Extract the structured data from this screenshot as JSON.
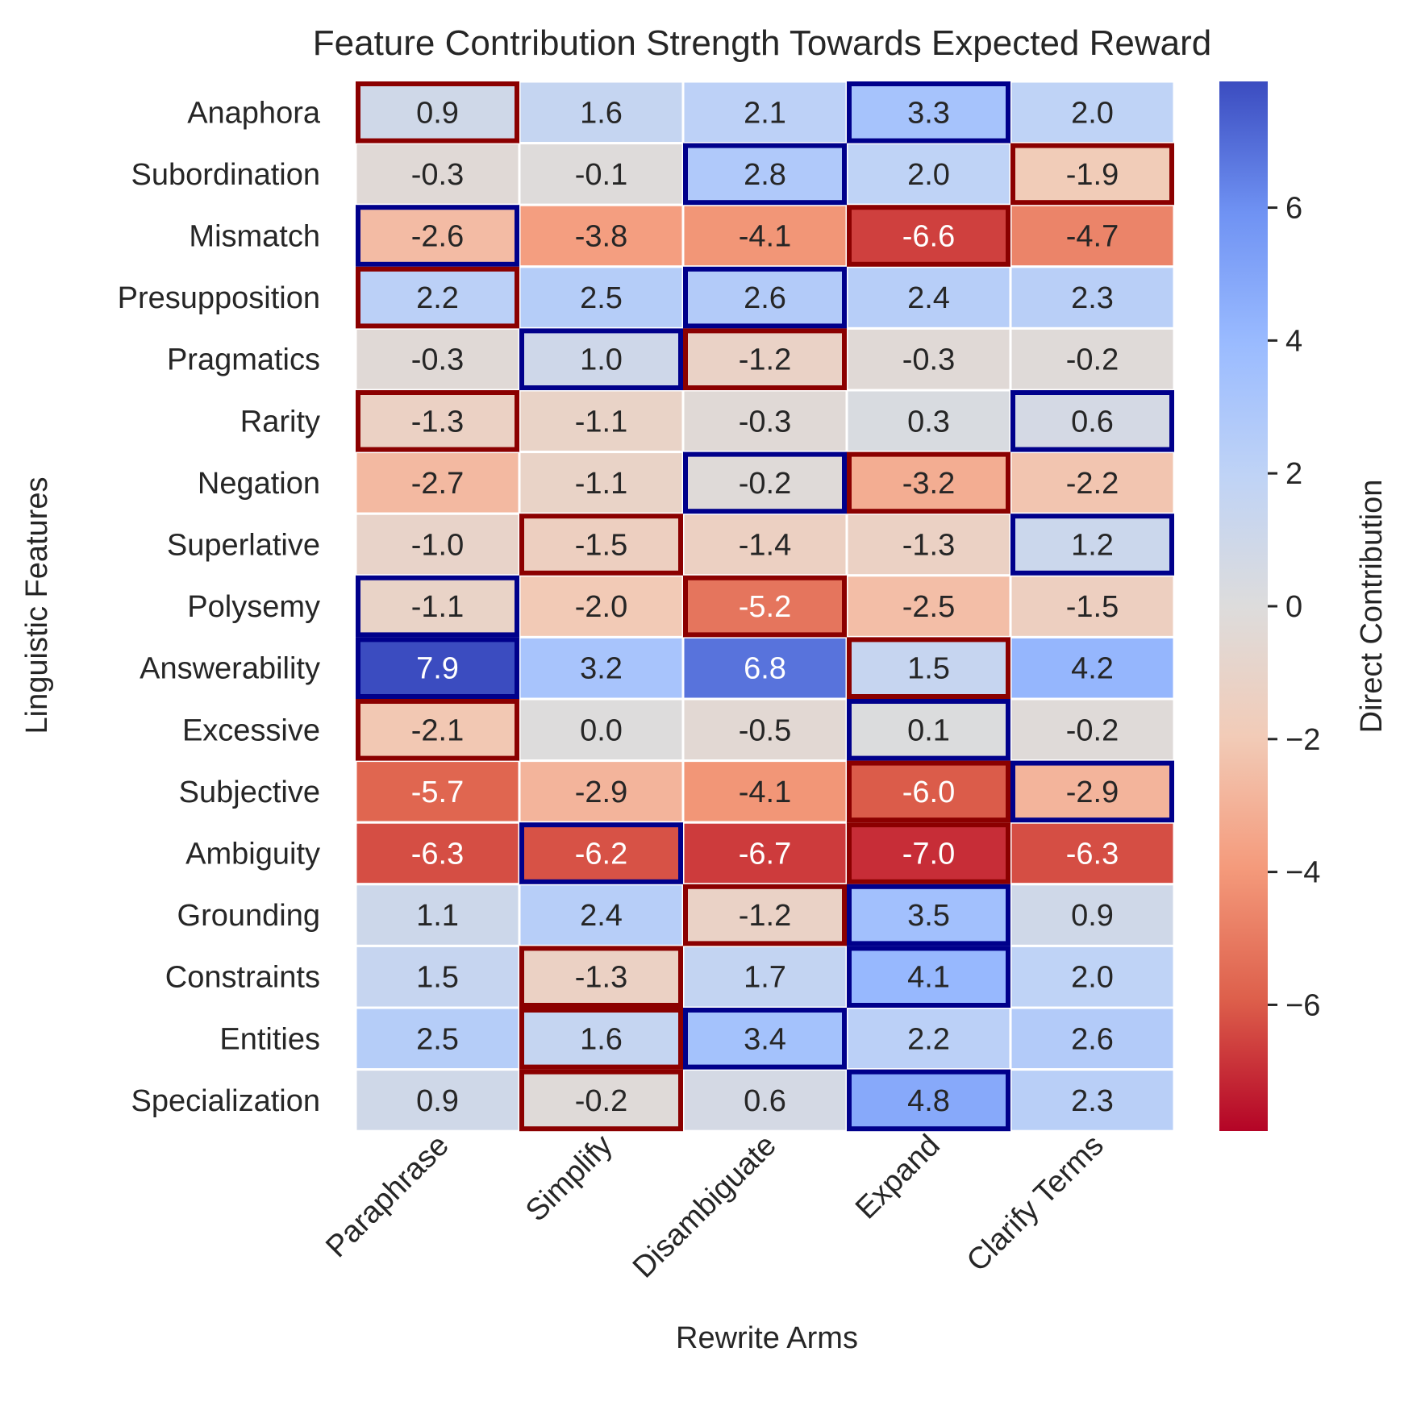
{
  "chart_data": {
    "type": "heatmap",
    "title": "Feature Contribution Strength Towards Expected Reward",
    "xlabel": "Rewrite Arms",
    "ylabel": "Linguistic Features",
    "colorbar_label": "Direct Contribution",
    "colormap": "coolwarm_r",
    "vmin": -7.9,
    "vmax": 7.9,
    "colorbar_ticks": [
      6,
      4,
      2,
      0,
      -2,
      -4,
      -6
    ],
    "colorbar_tick_labels": [
      "6",
      "4",
      "2",
      "0",
      "−2",
      "−4",
      "−6"
    ],
    "columns": [
      "Paraphrase",
      "Simplify",
      "Disambiguate",
      "Expand",
      "Clarify Terms"
    ],
    "rows": [
      "Anaphora",
      "Subordination",
      "Mismatch",
      "Presupposition",
      "Pragmatics",
      "Rarity",
      "Negation",
      "Superlative",
      "Polysemy",
      "Answerability",
      "Excessive",
      "Subjective",
      "Ambiguity",
      "Grounding",
      "Constraints",
      "Entities",
      "Specialization"
    ],
    "values": [
      [
        0.9,
        1.6,
        2.1,
        3.3,
        2.0
      ],
      [
        -0.3,
        -0.1,
        2.8,
        2.0,
        -1.9
      ],
      [
        -2.6,
        -3.8,
        -4.1,
        -6.6,
        -4.7
      ],
      [
        2.2,
        2.5,
        2.6,
        2.4,
        2.3
      ],
      [
        -0.3,
        1.0,
        -1.2,
        -0.3,
        -0.2
      ],
      [
        -1.3,
        -1.1,
        -0.3,
        0.3,
        0.6
      ],
      [
        -2.7,
        -1.1,
        -0.2,
        -3.2,
        -2.2
      ],
      [
        -1.0,
        -1.5,
        -1.4,
        -1.3,
        1.2
      ],
      [
        -1.1,
        -2.0,
        -5.2,
        -2.5,
        -1.5
      ],
      [
        7.9,
        3.2,
        6.8,
        1.5,
        4.2
      ],
      [
        -2.1,
        0.0,
        -0.5,
        0.1,
        -0.2
      ],
      [
        -5.7,
        -2.9,
        -4.1,
        -6.0,
        -2.9
      ],
      [
        -6.3,
        -6.2,
        -6.7,
        -7.0,
        -6.3
      ],
      [
        1.1,
        2.4,
        -1.2,
        3.5,
        0.9
      ],
      [
        1.5,
        -1.3,
        1.7,
        4.1,
        2.0
      ],
      [
        2.5,
        1.6,
        3.4,
        2.2,
        2.6
      ],
      [
        0.9,
        -0.2,
        0.6,
        4.8,
        2.3
      ]
    ],
    "value_labels": [
      [
        "0.9",
        "1.6",
        "2.1",
        "3.3",
        "2.0"
      ],
      [
        "-0.3",
        "-0.1",
        "2.8",
        "2.0",
        "-1.9"
      ],
      [
        "-2.6",
        "-3.8",
        "-4.1",
        "-6.6",
        "-4.7"
      ],
      [
        "2.2",
        "2.5",
        "2.6",
        "2.4",
        "2.3"
      ],
      [
        "-0.3",
        "1.0",
        "-1.2",
        "-0.3",
        "-0.2"
      ],
      [
        "-1.3",
        "-1.1",
        "-0.3",
        "0.3",
        "0.6"
      ],
      [
        "-2.7",
        "-1.1",
        "-0.2",
        "-3.2",
        "-2.2"
      ],
      [
        "-1.0",
        "-1.5",
        "-1.4",
        "-1.3",
        "1.2"
      ],
      [
        "-1.1",
        "-2.0",
        "-5.2",
        "-2.5",
        "-1.5"
      ],
      [
        "7.9",
        "3.2",
        "6.8",
        "1.5",
        "4.2"
      ],
      [
        "-2.1",
        "0.0",
        "-0.5",
        "0.1",
        "-0.2"
      ],
      [
        "-5.7",
        "-2.9",
        "-4.1",
        "-6.0",
        "-2.9"
      ],
      [
        "-6.3",
        "-6.2",
        "-6.7",
        "-7.0",
        "-6.3"
      ],
      [
        "1.1",
        "2.4",
        "-1.2",
        "3.5",
        "0.9"
      ],
      [
        "1.5",
        "-1.3",
        "1.7",
        "4.1",
        "2.0"
      ],
      [
        "2.5",
        "1.6",
        "3.4",
        "2.2",
        "2.6"
      ],
      [
        "0.9",
        "-0.2",
        "0.6",
        "4.8",
        "2.3"
      ]
    ],
    "highlight_colors": {
      "max": "#00008b",
      "min": "#8b0000"
    },
    "highlights": [
      {
        "row": 0,
        "col": 0,
        "kind": "min"
      },
      {
        "row": 0,
        "col": 3,
        "kind": "max"
      },
      {
        "row": 1,
        "col": 2,
        "kind": "max"
      },
      {
        "row": 1,
        "col": 4,
        "kind": "min"
      },
      {
        "row": 2,
        "col": 0,
        "kind": "max"
      },
      {
        "row": 2,
        "col": 3,
        "kind": "min"
      },
      {
        "row": 3,
        "col": 0,
        "kind": "min"
      },
      {
        "row": 3,
        "col": 2,
        "kind": "max"
      },
      {
        "row": 4,
        "col": 1,
        "kind": "max"
      },
      {
        "row": 4,
        "col": 2,
        "kind": "min"
      },
      {
        "row": 5,
        "col": 0,
        "kind": "min"
      },
      {
        "row": 5,
        "col": 4,
        "kind": "max"
      },
      {
        "row": 6,
        "col": 2,
        "kind": "max"
      },
      {
        "row": 6,
        "col": 3,
        "kind": "min"
      },
      {
        "row": 7,
        "col": 1,
        "kind": "min"
      },
      {
        "row": 7,
        "col": 4,
        "kind": "max"
      },
      {
        "row": 8,
        "col": 0,
        "kind": "max"
      },
      {
        "row": 8,
        "col": 2,
        "kind": "min"
      },
      {
        "row": 9,
        "col": 0,
        "kind": "max"
      },
      {
        "row": 9,
        "col": 3,
        "kind": "min"
      },
      {
        "row": 10,
        "col": 0,
        "kind": "min"
      },
      {
        "row": 10,
        "col": 3,
        "kind": "max"
      },
      {
        "row": 11,
        "col": 3,
        "kind": "min"
      },
      {
        "row": 11,
        "col": 4,
        "kind": "max"
      },
      {
        "row": 12,
        "col": 1,
        "kind": "max"
      },
      {
        "row": 12,
        "col": 3,
        "kind": "min"
      },
      {
        "row": 13,
        "col": 2,
        "kind": "min"
      },
      {
        "row": 13,
        "col": 3,
        "kind": "max"
      },
      {
        "row": 14,
        "col": 1,
        "kind": "min"
      },
      {
        "row": 14,
        "col": 3,
        "kind": "max"
      },
      {
        "row": 15,
        "col": 1,
        "kind": "min"
      },
      {
        "row": 15,
        "col": 2,
        "kind": "max"
      },
      {
        "row": 16,
        "col": 1,
        "kind": "min"
      },
      {
        "row": 16,
        "col": 3,
        "kind": "max"
      }
    ]
  }
}
